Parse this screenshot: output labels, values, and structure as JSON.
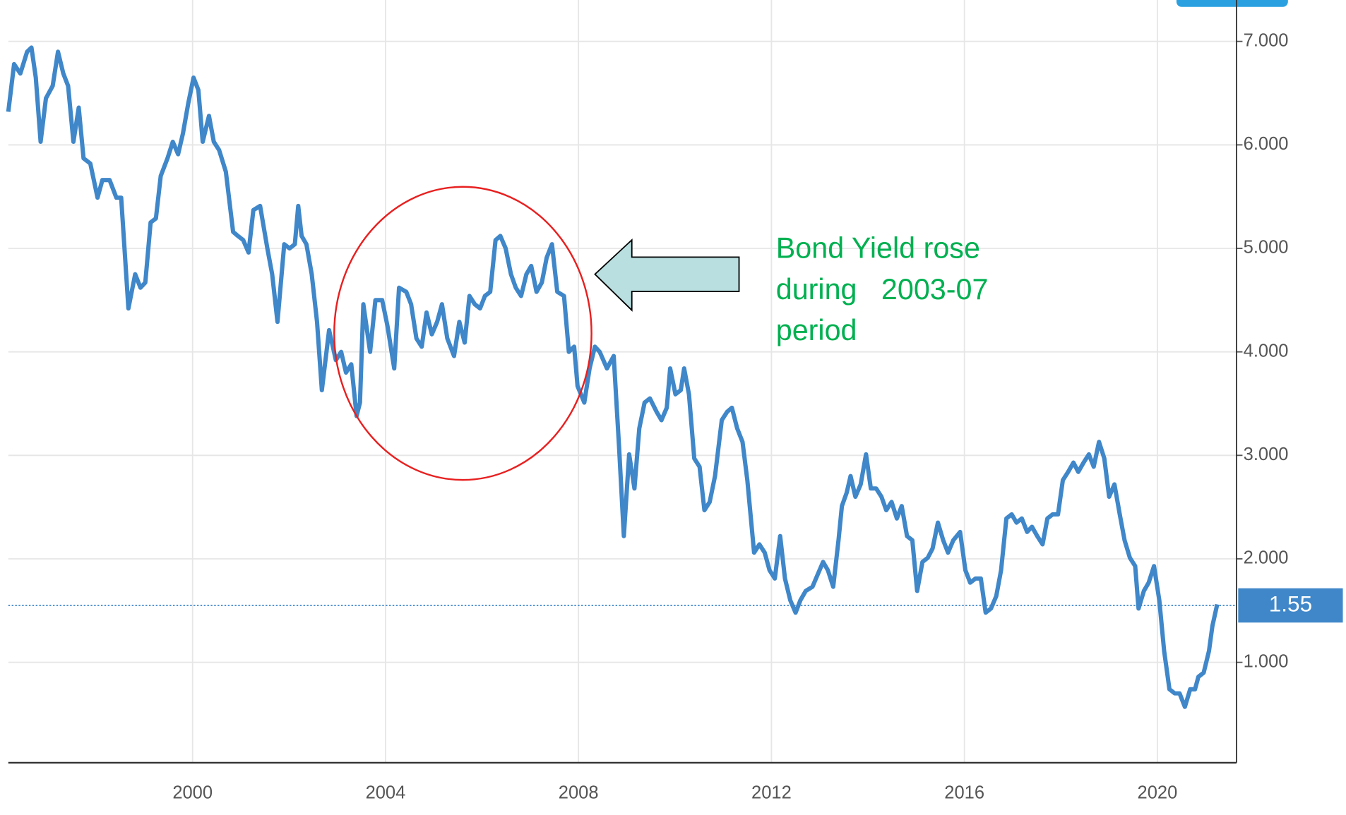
{
  "chart_data": {
    "type": "line",
    "x": [
      1996.18,
      1996.3,
      1996.43,
      1996.57,
      1996.66,
      1996.75,
      1996.85,
      1996.96,
      1997.1,
      1997.21,
      1997.32,
      1997.42,
      1997.53,
      1997.64,
      1997.74,
      1997.88,
      1998.03,
      1998.13,
      1998.28,
      1998.42,
      1998.52,
      1998.67,
      1998.81,
      1998.92,
      1999.02,
      1999.13,
      1999.24,
      1999.34,
      1999.48,
      1999.59,
      1999.7,
      1999.8,
      1999.91,
      2000.02,
      2000.12,
      2000.21,
      2000.34,
      2000.44,
      2000.55,
      2000.69,
      2000.84,
      2000.94,
      2001.05,
      2001.16,
      2001.26,
      2001.4,
      2001.55,
      2001.65,
      2001.76,
      2001.9,
      2002.01,
      2002.12,
      2002.19,
      2002.26,
      2002.36,
      2002.47,
      2002.58,
      2002.68,
      2002.83,
      2002.97,
      2003.08,
      2003.18,
      2003.29,
      2003.4,
      2003.47,
      2003.54,
      2003.68,
      2003.79,
      2003.93,
      2004.04,
      2004.18,
      2004.28,
      2004.43,
      2004.53,
      2004.64,
      2004.75,
      2004.85,
      2004.96,
      2005.07,
      2005.17,
      2005.28,
      2005.42,
      2005.53,
      2005.64,
      2005.74,
      2005.85,
      2005.96,
      2006.06,
      2006.17,
      2006.28,
      2006.38,
      2006.49,
      2006.6,
      2006.7,
      2006.81,
      2006.92,
      2007.02,
      2007.13,
      2007.24,
      2007.34,
      2007.45,
      2007.56,
      2007.7,
      2007.8,
      2007.91,
      2007.98,
      2008.12,
      2008.23,
      2008.34,
      2008.44,
      2008.59,
      2008.73,
      2008.84,
      2008.94,
      2009.05,
      2009.16,
      2009.26,
      2009.37,
      2009.48,
      2009.62,
      2009.72,
      2009.83,
      2009.9,
      2010.01,
      2010.12,
      2010.19,
      2010.29,
      2010.4,
      2010.51,
      2010.61,
      2010.72,
      2010.83,
      2010.97,
      2011.08,
      2011.18,
      2011.29,
      2011.4,
      2011.5,
      2011.64,
      2011.75,
      2011.86,
      2011.96,
      2012.07,
      2012.18,
      2012.28,
      2012.39,
      2012.5,
      2012.6,
      2012.71,
      2012.85,
      2012.96,
      2013.07,
      2013.17,
      2013.28,
      2013.39,
      2013.46,
      2013.56,
      2013.64,
      2013.74,
      2013.85,
      2013.96,
      2014.06,
      2014.17,
      2014.28,
      2014.38,
      2014.49,
      2014.6,
      2014.7,
      2014.81,
      2014.92,
      2015.02,
      2015.13,
      2015.24,
      2015.34,
      2015.45,
      2015.56,
      2015.66,
      2015.77,
      2015.91,
      2016.02,
      2016.12,
      2016.23,
      2016.34,
      2016.44,
      2016.55,
      2016.66,
      2016.76,
      2016.87,
      2016.98,
      2017.08,
      2017.19,
      2017.3,
      2017.4,
      2017.51,
      2017.62,
      2017.72,
      2017.83,
      2017.94,
      2018.04,
      2018.15,
      2018.26,
      2018.36,
      2018.47,
      2018.58,
      2018.68,
      2018.79,
      2018.9,
      2019.0,
      2019.11,
      2019.22,
      2019.32,
      2019.43,
      2019.54,
      2019.61,
      2019.72,
      2019.82,
      2019.93,
      2020.04,
      2020.14,
      2020.25,
      2020.36,
      2020.46,
      2020.57,
      2020.68,
      2020.78,
      2020.85,
      2020.96,
      2021.07,
      2021.14,
      2021.24
    ],
    "series": [
      {
        "color": "#3f87c9",
        "values": [
          6.32,
          6.78,
          6.69,
          6.9,
          6.94,
          6.65,
          6.03,
          6.45,
          6.57,
          6.9,
          6.69,
          6.57,
          6.03,
          6.36,
          5.87,
          5.82,
          5.49,
          5.66,
          5.66,
          5.49,
          5.49,
          4.42,
          4.75,
          4.62,
          4.67,
          5.25,
          5.29,
          5.7,
          5.87,
          6.03,
          5.91,
          6.11,
          6.4,
          6.65,
          6.53,
          6.03,
          6.28,
          6.03,
          5.95,
          5.74,
          5.16,
          5.12,
          5.08,
          4.96,
          5.37,
          5.41,
          5.0,
          4.75,
          4.29,
          5.04,
          5.0,
          5.04,
          5.41,
          5.12,
          5.04,
          4.75,
          4.29,
          3.63,
          4.21,
          3.92,
          4.0,
          3.8,
          3.88,
          3.38,
          3.51,
          4.46,
          4.0,
          4.5,
          4.5,
          4.25,
          3.84,
          4.62,
          4.58,
          4.46,
          4.13,
          4.05,
          4.38,
          4.17,
          4.29,
          4.46,
          4.13,
          3.96,
          4.29,
          4.09,
          4.54,
          4.46,
          4.42,
          4.54,
          4.58,
          5.08,
          5.12,
          5.0,
          4.75,
          4.62,
          4.54,
          4.75,
          4.83,
          4.58,
          4.67,
          4.91,
          5.04,
          4.58,
          4.54,
          4.0,
          4.05,
          3.67,
          3.51,
          3.84,
          4.05,
          4.0,
          3.84,
          3.96,
          3.09,
          2.22,
          3.01,
          2.68,
          3.26,
          3.51,
          3.55,
          3.42,
          3.34,
          3.46,
          3.84,
          3.59,
          3.63,
          3.84,
          3.59,
          2.97,
          2.89,
          2.47,
          2.55,
          2.8,
          3.34,
          3.42,
          3.46,
          3.26,
          3.13,
          2.76,
          2.06,
          2.14,
          2.06,
          1.89,
          1.81,
          2.22,
          1.81,
          1.6,
          1.48,
          1.6,
          1.69,
          1.73,
          1.85,
          1.97,
          1.89,
          1.73,
          2.18,
          2.51,
          2.64,
          2.8,
          2.6,
          2.72,
          3.01,
          2.68,
          2.68,
          2.6,
          2.47,
          2.55,
          2.39,
          2.51,
          2.22,
          2.18,
          1.69,
          1.97,
          2.01,
          2.1,
          2.35,
          2.18,
          2.06,
          2.18,
          2.26,
          1.89,
          1.77,
          1.81,
          1.81,
          1.48,
          1.52,
          1.64,
          1.89,
          2.39,
          2.43,
          2.35,
          2.39,
          2.26,
          2.31,
          2.22,
          2.14,
          2.39,
          2.43,
          2.43,
          2.76,
          2.84,
          2.93,
          2.84,
          2.93,
          3.01,
          2.89,
          3.13,
          2.97,
          2.6,
          2.72,
          2.43,
          2.18,
          2.01,
          1.93,
          1.52,
          1.69,
          1.77,
          1.93,
          1.6,
          1.11,
          0.74,
          0.7,
          0.7,
          0.57,
          0.74,
          0.74,
          0.86,
          0.9,
          1.11,
          1.35,
          1.56
        ]
      }
    ],
    "current_value": 1.55,
    "xlim": [
      1996.18,
      2021.64
    ],
    "ylim": [
      0.03,
      7.4
    ],
    "xticks": [
      2000,
      2004,
      2008,
      2012,
      2016,
      2020
    ],
    "yticks": [
      {
        "value": 1,
        "label": "1.000"
      },
      {
        "value": 2,
        "label": "2.000"
      },
      {
        "value": 3,
        "label": "3.000"
      },
      {
        "value": 4,
        "label": "4.000"
      },
      {
        "value": 5,
        "label": "5.000"
      },
      {
        "value": 6,
        "label": "6.000"
      },
      {
        "value": 7,
        "label": "7.000"
      }
    ],
    "grid": true,
    "annotation": [
      "Bond Yield rose",
      "during   2003-07",
      "period"
    ]
  }
}
